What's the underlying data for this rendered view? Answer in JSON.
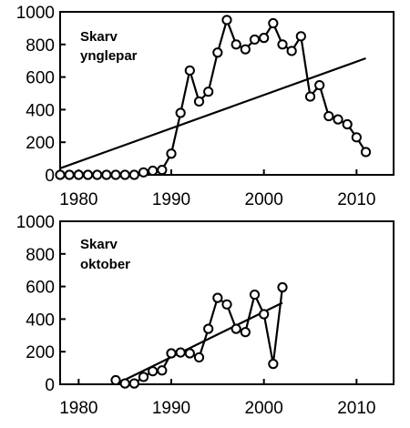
{
  "chart_data": [
    {
      "type": "line",
      "annotation": [
        "Skarv",
        "ynglepar"
      ],
      "xlim": [
        1978,
        2014
      ],
      "ylim": [
        0,
        1000
      ],
      "xticks": [
        1980,
        1990,
        2000,
        2010
      ],
      "yticks": [
        0,
        200,
        400,
        600,
        800,
        1000
      ],
      "series": [
        {
          "x": [
            1978,
            1979,
            1980,
            1981,
            1982,
            1983,
            1984,
            1985,
            1986,
            1987,
            1988,
            1989,
            1990,
            1991,
            1992,
            1993,
            1994,
            1995,
            1996,
            1997,
            1998,
            1999,
            2000,
            2001,
            2002,
            2003,
            2004,
            2005,
            2006,
            2007,
            2008,
            2009,
            2010,
            2011
          ],
          "y": [
            0,
            0,
            0,
            0,
            0,
            0,
            0,
            0,
            0,
            15,
            25,
            30,
            130,
            380,
            640,
            450,
            510,
            750,
            950,
            800,
            770,
            830,
            840,
            930,
            800,
            760,
            850,
            480,
            550,
            360,
            340,
            310,
            230,
            140
          ]
        }
      ],
      "trendline": {
        "x": [
          1978,
          2011
        ],
        "y": [
          40,
          715
        ]
      }
    },
    {
      "type": "line",
      "annotation": [
        "Skarv",
        "oktober"
      ],
      "xlim": [
        1978,
        2014
      ],
      "ylim": [
        0,
        1000
      ],
      "xticks": [
        1980,
        1990,
        2000,
        2010
      ],
      "yticks": [
        0,
        200,
        400,
        600,
        800,
        1000
      ],
      "series": [
        {
          "x": [
            1984,
            1985,
            1986,
            1987,
            1988,
            1989,
            1990,
            1991,
            1992,
            1993,
            1994,
            1995,
            1996,
            1997,
            1998,
            1999,
            2000,
            2001,
            2002
          ],
          "y": [
            25,
            5,
            5,
            45,
            80,
            85,
            190,
            195,
            190,
            165,
            340,
            530,
            490,
            340,
            320,
            550,
            430,
            125,
            595
          ]
        }
      ],
      "trendline": {
        "x": [
          1984,
          2002
        ],
        "y": [
          0,
          500
        ]
      }
    }
  ]
}
